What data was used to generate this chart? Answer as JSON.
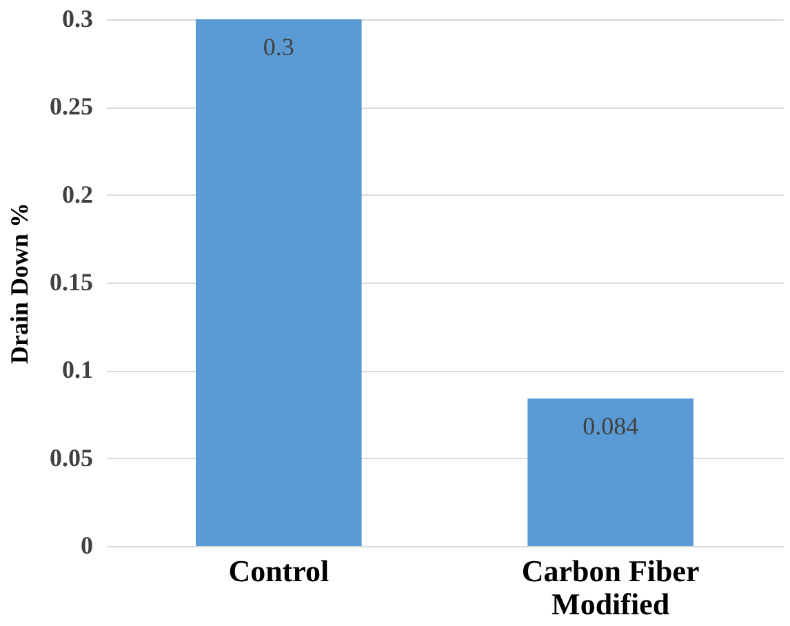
{
  "chart_data": {
    "type": "bar",
    "ylabel": "Drain Down %",
    "categories": [
      "Control",
      "Carbon Fiber Modified"
    ],
    "values": [
      0.3,
      0.084
    ],
    "color": "#5b9bd5",
    "ylim": [
      0,
      0.3
    ],
    "yticks": [
      0,
      0.05,
      0.1,
      0.15,
      0.2,
      0.25,
      0.3
    ],
    "grid": "y",
    "data_labels": true
  }
}
